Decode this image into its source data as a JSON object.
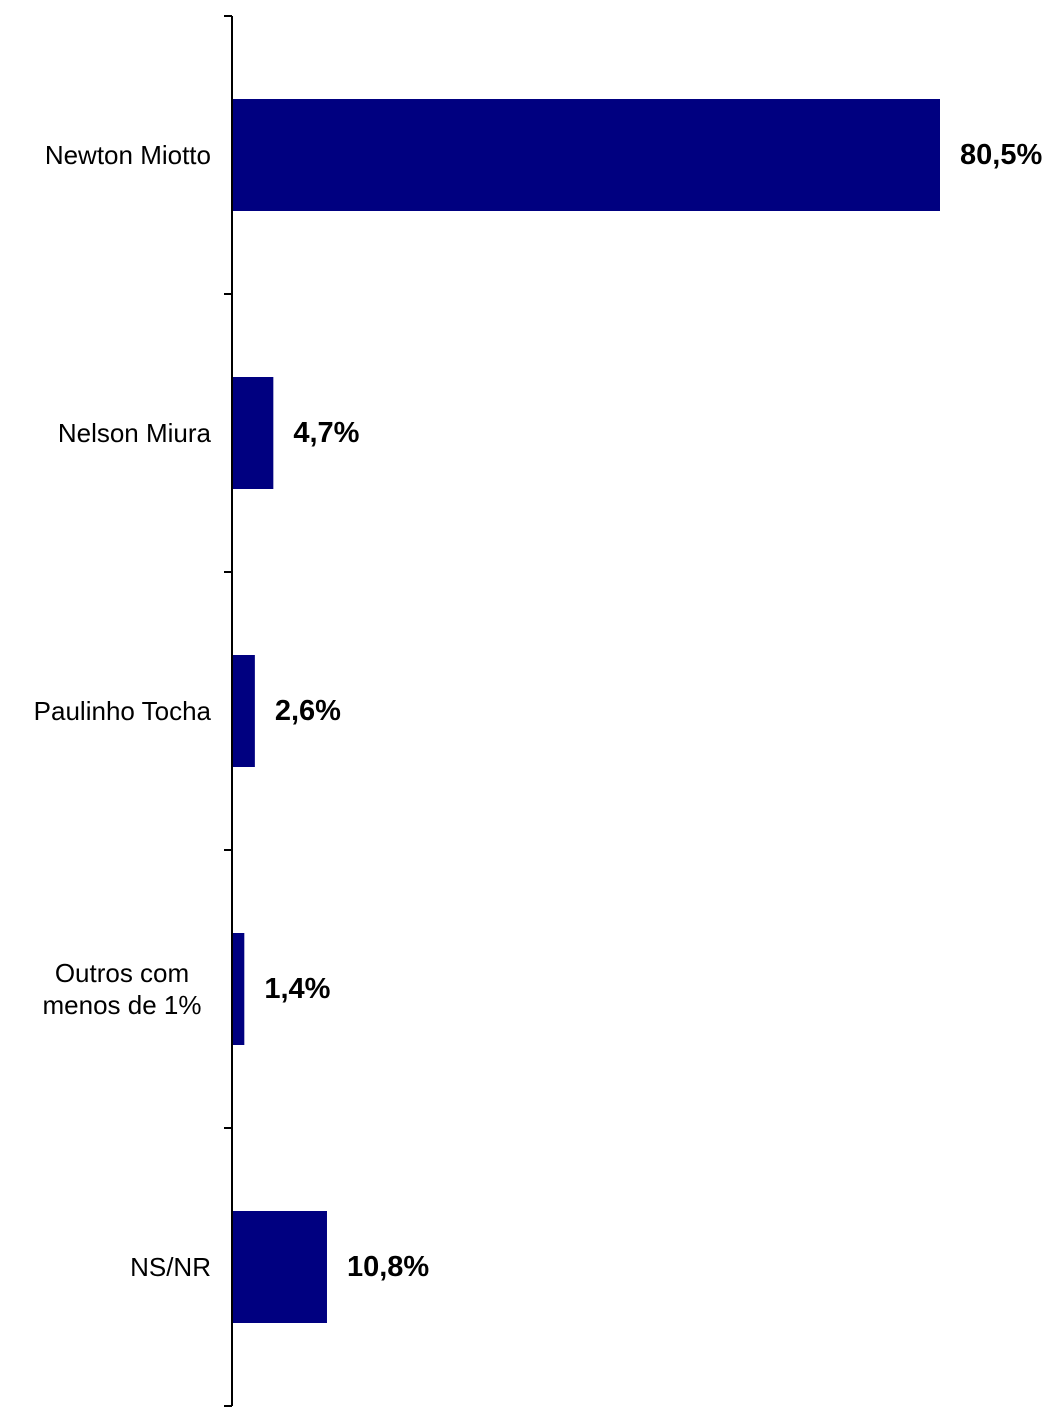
{
  "chart_data": {
    "type": "bar",
    "orientation": "horizontal",
    "categories": [
      [
        "Newton Miotto"
      ],
      [
        "Nelson Miura"
      ],
      [
        "Paulinho Tocha"
      ],
      [
        "Outros com",
        "menos de 1%"
      ],
      [
        "NS/NR"
      ]
    ],
    "values": [
      80.5,
      4.7,
      2.6,
      1.4,
      10.8
    ],
    "value_labels": [
      "80,5%",
      "4,7%",
      "2,6%",
      "1,4%",
      "10,8%"
    ],
    "xlim": [
      0,
      80.5
    ],
    "bar_color": "#000080",
    "grid": false,
    "legend": "none"
  }
}
